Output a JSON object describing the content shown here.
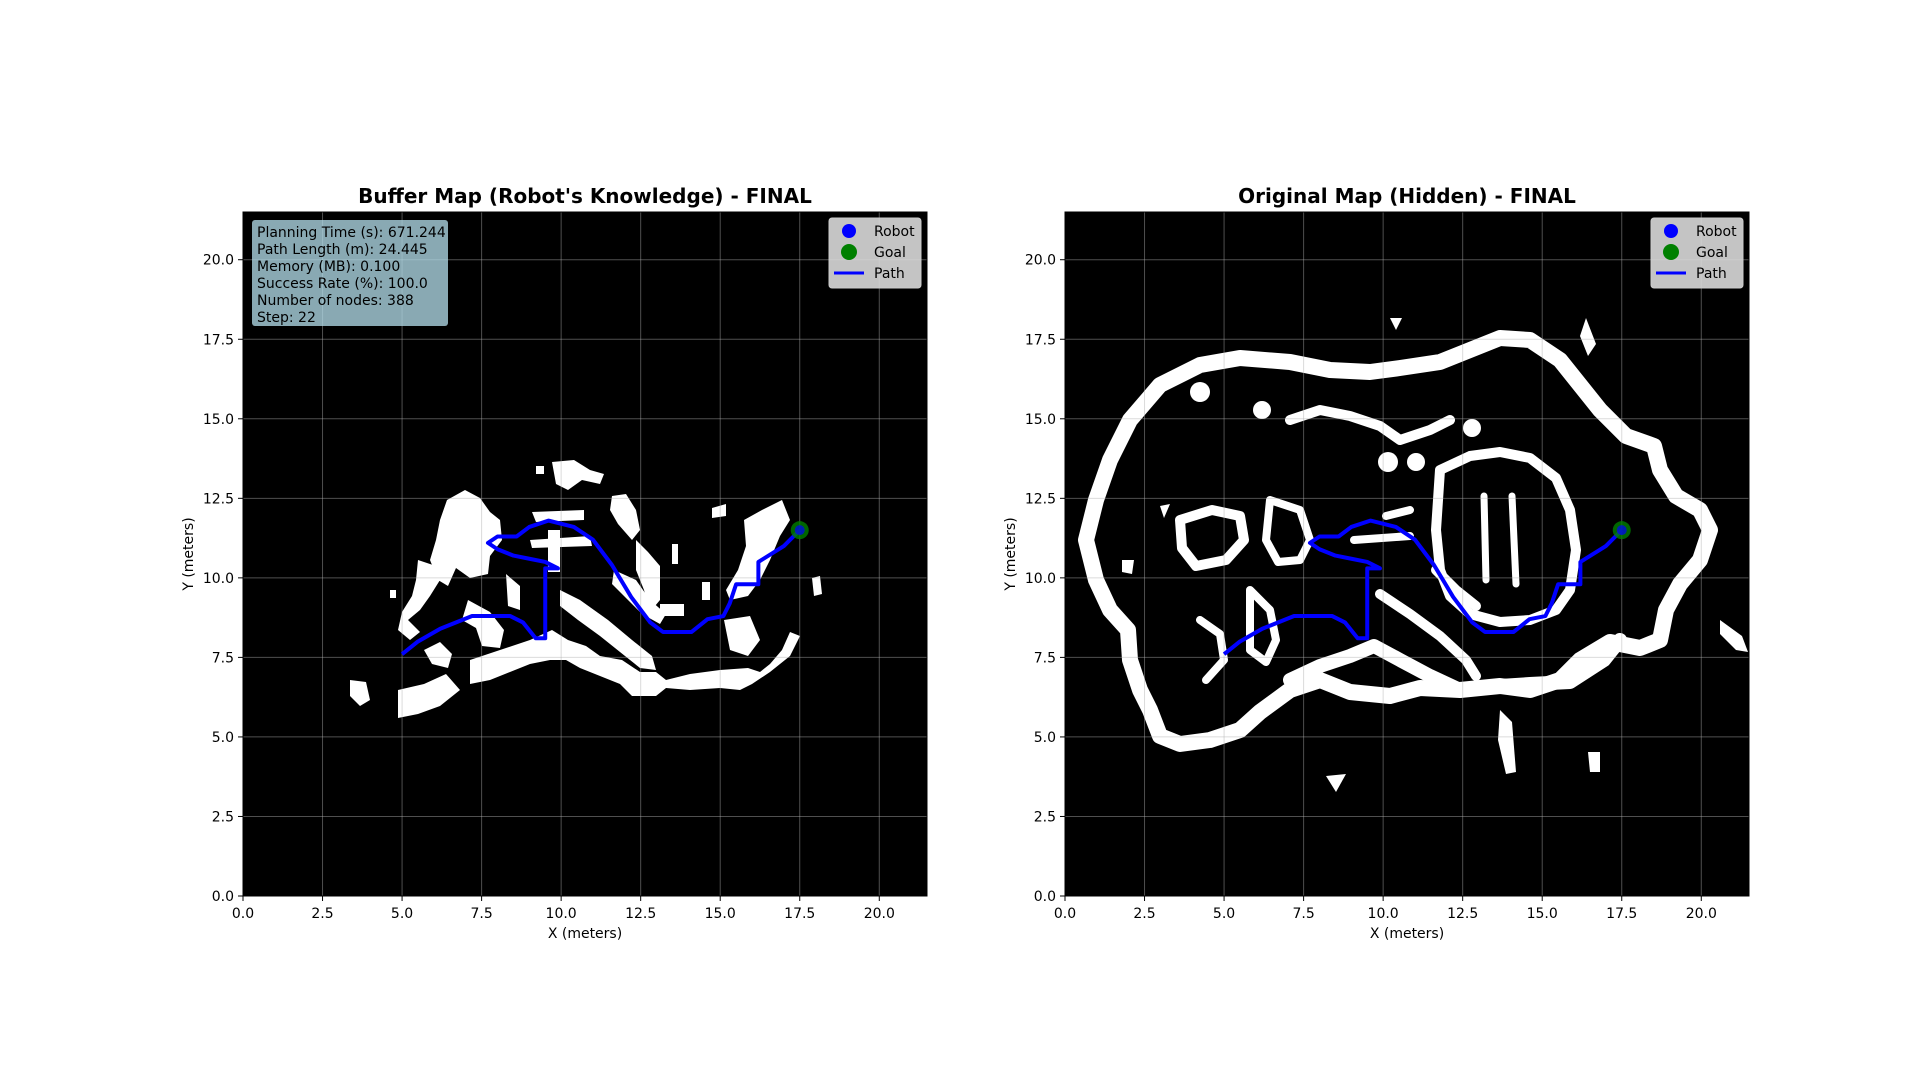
{
  "chart_data": [
    {
      "type": "scatter",
      "title": "Buffer Map (Robot's Knowledge) - FINAL",
      "xlabel": "X (meters)",
      "ylabel": "Y (meters)",
      "xlim": [
        0,
        21.5
      ],
      "ylim": [
        0,
        21.5
      ],
      "x_ticks": [
        "0.0",
        "2.5",
        "5.0",
        "7.5",
        "10.0",
        "12.5",
        "15.0",
        "17.5",
        "20.0"
      ],
      "y_ticks": [
        "0.0",
        "2.5",
        "5.0",
        "7.5",
        "10.0",
        "12.5",
        "15.0",
        "17.5",
        "20.0"
      ],
      "grid": true,
      "legend_position": "top-right",
      "legend": [
        "Robot",
        "Goal",
        "Path"
      ],
      "info_box": [
        "Planning Time (s): 671.244",
        "Path Length (m): 24.445",
        "Memory (MB): 0.100",
        "Success Rate (%): 100.0",
        "Number of nodes: 388",
        "Step: 22"
      ],
      "robot": [
        17.5,
        11.5
      ],
      "goal": [
        17.5,
        11.5
      ],
      "path": [
        [
          5.0,
          7.6
        ],
        [
          5.5,
          8.0
        ],
        [
          6.2,
          8.4
        ],
        [
          7.2,
          8.8
        ],
        [
          8.4,
          8.8
        ],
        [
          8.8,
          8.6
        ],
        [
          9.2,
          8.1
        ],
        [
          9.5,
          8.1
        ],
        [
          9.5,
          10.3
        ],
        [
          9.9,
          10.3
        ],
        [
          9.5,
          10.5
        ],
        [
          9.0,
          10.6
        ],
        [
          8.5,
          10.7
        ],
        [
          8.0,
          10.9
        ],
        [
          7.7,
          11.1
        ],
        [
          8.0,
          11.3
        ],
        [
          8.6,
          11.3
        ],
        [
          9.0,
          11.6
        ],
        [
          9.6,
          11.8
        ],
        [
          10.4,
          11.6
        ],
        [
          11.0,
          11.2
        ],
        [
          11.6,
          10.4
        ],
        [
          12.2,
          9.4
        ],
        [
          12.8,
          8.6
        ],
        [
          13.2,
          8.3
        ],
        [
          14.1,
          8.3
        ],
        [
          14.6,
          8.7
        ],
        [
          15.1,
          8.8
        ],
        [
          15.3,
          9.2
        ],
        [
          15.5,
          9.8
        ],
        [
          16.2,
          9.8
        ],
        [
          16.2,
          10.5
        ],
        [
          17.0,
          11.0
        ],
        [
          17.5,
          11.5
        ]
      ],
      "obstacle_color": "#ffffff",
      "free_color": "#000000",
      "path_color": "#0000ff",
      "robot_color": "#0000ff",
      "goal_color": "#008000"
    },
    {
      "type": "scatter",
      "title": "Original Map (Hidden) - FINAL",
      "xlabel": "X (meters)",
      "ylabel": "Y (meters)",
      "xlim": [
        0,
        21.5
      ],
      "ylim": [
        0,
        21.5
      ],
      "x_ticks": [
        "0.0",
        "2.5",
        "5.0",
        "7.5",
        "10.0",
        "12.5",
        "15.0",
        "17.5",
        "20.0"
      ],
      "y_ticks": [
        "0.0",
        "2.5",
        "5.0",
        "7.5",
        "10.0",
        "12.5",
        "15.0",
        "17.5",
        "20.0"
      ],
      "grid": true,
      "legend_position": "top-right",
      "legend": [
        "Robot",
        "Goal",
        "Path"
      ],
      "robot": [
        17.5,
        11.5
      ],
      "goal": [
        17.5,
        11.5
      ],
      "path": [
        [
          5.0,
          7.6
        ],
        [
          5.5,
          8.0
        ],
        [
          6.2,
          8.4
        ],
        [
          7.2,
          8.8
        ],
        [
          8.4,
          8.8
        ],
        [
          8.8,
          8.6
        ],
        [
          9.2,
          8.1
        ],
        [
          9.5,
          8.1
        ],
        [
          9.5,
          10.3
        ],
        [
          9.9,
          10.3
        ],
        [
          9.5,
          10.5
        ],
        [
          9.0,
          10.6
        ],
        [
          8.5,
          10.7
        ],
        [
          8.0,
          10.9
        ],
        [
          7.7,
          11.1
        ],
        [
          8.0,
          11.3
        ],
        [
          8.6,
          11.3
        ],
        [
          9.0,
          11.6
        ],
        [
          9.6,
          11.8
        ],
        [
          10.4,
          11.6
        ],
        [
          11.0,
          11.2
        ],
        [
          11.6,
          10.4
        ],
        [
          12.2,
          9.4
        ],
        [
          12.8,
          8.6
        ],
        [
          13.2,
          8.3
        ],
        [
          14.1,
          8.3
        ],
        [
          14.6,
          8.7
        ],
        [
          15.1,
          8.8
        ],
        [
          15.3,
          9.2
        ],
        [
          15.5,
          9.8
        ],
        [
          16.2,
          9.8
        ],
        [
          16.2,
          10.5
        ],
        [
          17.0,
          11.0
        ],
        [
          17.5,
          11.5
        ]
      ],
      "obstacle_color": "#ffffff",
      "free_color": "#000000",
      "path_color": "#0000ff",
      "robot_color": "#0000ff",
      "goal_color": "#008000"
    }
  ]
}
